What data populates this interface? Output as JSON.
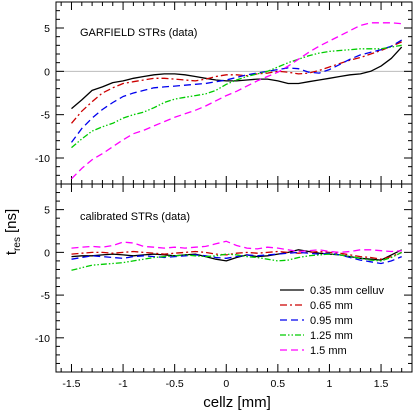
{
  "chart_data": [
    {
      "type": "line",
      "title": "GARFIELD STRs (data)",
      "xlabel": "cellz [mm]",
      "ylabel": "t_res [ns]",
      "xlim": [
        -1.65,
        1.8
      ],
      "ylim": [
        -13,
        8
      ],
      "yticks": [
        -10,
        -5,
        0,
        5
      ],
      "reference_line_y": 0,
      "series": [
        {
          "name": "0.35 mm celluv",
          "color": "#000000",
          "dash": "solid",
          "x": [
            -1.5,
            -1.4,
            -1.3,
            -1.2,
            -1.1,
            -1.0,
            -0.9,
            -0.8,
            -0.7,
            -0.6,
            -0.5,
            -0.4,
            -0.3,
            -0.2,
            -0.1,
            0.0,
            0.1,
            0.2,
            0.3,
            0.4,
            0.5,
            0.6,
            0.7,
            0.8,
            0.9,
            1.0,
            1.1,
            1.2,
            1.3,
            1.4,
            1.5,
            1.6,
            1.7
          ],
          "y": [
            -4.3,
            -3.3,
            -2.2,
            -1.8,
            -1.3,
            -1.1,
            -0.8,
            -0.6,
            -0.4,
            -0.3,
            -0.3,
            -0.4,
            -0.6,
            -0.8,
            -1.0,
            -1.1,
            -1.1,
            -1.0,
            -0.9,
            -0.9,
            -1.1,
            -1.4,
            -1.4,
            -1.2,
            -1.0,
            -0.8,
            -0.6,
            -0.4,
            -0.3,
            0.0,
            0.6,
            1.5,
            2.8
          ]
        },
        {
          "name": "0.65 mm",
          "color": "#cc0000",
          "dash": "dashdot",
          "x": [
            -1.5,
            -1.4,
            -1.3,
            -1.2,
            -1.1,
            -1.0,
            -0.9,
            -0.8,
            -0.7,
            -0.6,
            -0.5,
            -0.4,
            -0.3,
            -0.2,
            -0.1,
            0.0,
            0.1,
            0.2,
            0.3,
            0.4,
            0.5,
            0.6,
            0.7,
            0.8,
            0.9,
            1.0,
            1.1,
            1.2,
            1.3,
            1.4,
            1.5,
            1.6,
            1.7
          ],
          "y": [
            -6.0,
            -4.6,
            -3.5,
            -2.5,
            -1.9,
            -1.4,
            -1.2,
            -1.0,
            -0.8,
            -0.8,
            -0.9,
            -1.0,
            -1.1,
            -0.9,
            -0.6,
            -0.4,
            -0.4,
            -0.5,
            -0.3,
            -0.2,
            0.0,
            -0.1,
            -0.3,
            -0.2,
            0.1,
            0.5,
            0.9,
            1.3,
            1.6,
            2.0,
            2.4,
            2.9,
            3.4
          ]
        },
        {
          "name": "0.95 mm",
          "color": "#0000ee",
          "dash": "dashed",
          "x": [
            -1.5,
            -1.4,
            -1.3,
            -1.2,
            -1.1,
            -1.0,
            -0.9,
            -0.8,
            -0.7,
            -0.6,
            -0.5,
            -0.4,
            -0.3,
            -0.2,
            -0.1,
            0.0,
            0.1,
            0.2,
            0.3,
            0.4,
            0.5,
            0.6,
            0.7,
            0.8,
            0.9,
            1.0,
            1.1,
            1.2,
            1.3,
            1.4,
            1.5,
            1.6,
            1.7
          ],
          "y": [
            -8.2,
            -6.6,
            -5.4,
            -4.4,
            -3.6,
            -2.9,
            -2.5,
            -2.2,
            -1.9,
            -1.8,
            -1.7,
            -1.6,
            -1.5,
            -1.4,
            -1.2,
            -1.0,
            -0.7,
            -0.4,
            -0.2,
            0.0,
            0.2,
            0.4,
            0.3,
            -0.1,
            -0.2,
            0.2,
            0.8,
            1.4,
            1.9,
            2.2,
            2.5,
            2.9,
            3.6
          ]
        },
        {
          "name": "1.25 mm",
          "color": "#00cc00",
          "dash": "dashdotdot",
          "x": [
            -1.5,
            -1.4,
            -1.3,
            -1.2,
            -1.1,
            -1.0,
            -0.9,
            -0.8,
            -0.7,
            -0.6,
            -0.5,
            -0.4,
            -0.3,
            -0.2,
            -0.1,
            0.0,
            0.1,
            0.2,
            0.3,
            0.4,
            0.5,
            0.6,
            0.7,
            0.8,
            0.9,
            1.0,
            1.1,
            1.2,
            1.3,
            1.4,
            1.5,
            1.6,
            1.7
          ],
          "y": [
            -8.8,
            -7.8,
            -6.9,
            -6.4,
            -6.0,
            -5.4,
            -5.0,
            -4.7,
            -4.2,
            -3.6,
            -3.2,
            -3.0,
            -2.8,
            -2.6,
            -2.2,
            -1.5,
            -1.0,
            -0.6,
            -0.3,
            0.0,
            0.5,
            1.0,
            1.4,
            1.8,
            2.1,
            2.3,
            2.4,
            2.5,
            2.6,
            2.6,
            2.6,
            2.8,
            3.0
          ]
        },
        {
          "name": "1.5 mm",
          "color": "#ff00ff",
          "dash": "dashed",
          "x": [
            -1.5,
            -1.4,
            -1.3,
            -1.2,
            -1.1,
            -1.0,
            -0.9,
            -0.8,
            -0.7,
            -0.6,
            -0.5,
            -0.4,
            -0.3,
            -0.2,
            -0.1,
            0.0,
            0.1,
            0.2,
            0.3,
            0.4,
            0.5,
            0.6,
            0.7,
            0.8,
            0.9,
            1.0,
            1.1,
            1.2,
            1.3,
            1.4,
            1.5,
            1.6,
            1.7
          ],
          "y": [
            -12.4,
            -11.2,
            -10.2,
            -9.5,
            -8.7,
            -7.9,
            -7.2,
            -6.8,
            -6.3,
            -5.8,
            -5.3,
            -4.9,
            -4.5,
            -4.0,
            -3.4,
            -2.8,
            -2.3,
            -1.7,
            -1.1,
            -0.6,
            -0.1,
            0.6,
            1.4,
            2.2,
            2.9,
            3.5,
            4.1,
            4.7,
            5.3,
            5.6,
            5.6,
            5.6,
            5.5
          ]
        }
      ]
    },
    {
      "type": "line",
      "title": "calibrated STRs (data)",
      "xlabel": "cellz [mm]",
      "ylabel": "t_res [ns]",
      "xlim": [
        -1.65,
        1.8
      ],
      "ylim": [
        -14,
        8
      ],
      "xticks": [
        -1.5,
        -1,
        -0.5,
        0,
        0.5,
        1,
        1.5
      ],
      "yticks": [
        -10,
        -5,
        0,
        5
      ],
      "series": [
        {
          "name": "0.35 mm celluv",
          "color": "#000000",
          "dash": "solid",
          "x": [
            -1.5,
            -1.4,
            -1.3,
            -1.2,
            -1.1,
            -1.0,
            -0.9,
            -0.8,
            -0.7,
            -0.6,
            -0.5,
            -0.4,
            -0.3,
            -0.2,
            -0.1,
            0.0,
            0.1,
            0.2,
            0.3,
            0.4,
            0.5,
            0.6,
            0.7,
            0.8,
            0.9,
            1.0,
            1.1,
            1.2,
            1.3,
            1.4,
            1.5,
            1.6,
            1.7
          ],
          "y": [
            -0.5,
            -0.4,
            -0.4,
            -0.3,
            -0.2,
            -0.3,
            -0.4,
            -0.3,
            -0.2,
            -0.3,
            -0.4,
            -0.3,
            -0.2,
            -0.5,
            -0.8,
            -1.0,
            -0.6,
            -0.3,
            -0.5,
            -0.4,
            -0.2,
            0.0,
            0.3,
            0.1,
            -0.1,
            -0.2,
            -0.3,
            -0.5,
            -0.7,
            -0.8,
            -0.9,
            -0.3,
            0.3
          ]
        },
        {
          "name": "0.65 mm",
          "color": "#cc0000",
          "dash": "dashdot",
          "x": [
            -1.5,
            -1.4,
            -1.3,
            -1.2,
            -1.1,
            -1.0,
            -0.9,
            -0.8,
            -0.7,
            -0.6,
            -0.5,
            -0.4,
            -0.3,
            -0.2,
            -0.1,
            0.0,
            0.1,
            0.2,
            0.3,
            0.4,
            0.5,
            0.6,
            0.7,
            0.8,
            0.9,
            1.0,
            1.1,
            1.2,
            1.3,
            1.4,
            1.5,
            1.6,
            1.7
          ],
          "y": [
            -0.2,
            -0.1,
            0.0,
            0.0,
            -0.1,
            0.0,
            0.1,
            0.0,
            -0.1,
            -0.2,
            -0.1,
            0.0,
            0.1,
            0.0,
            -0.2,
            -0.3,
            -0.1,
            0.0,
            -0.1,
            0.0,
            0.1,
            0.0,
            -0.1,
            0.0,
            0.1,
            0.0,
            -0.1,
            -0.3,
            -0.5,
            -0.6,
            -0.8,
            -0.5,
            0.0
          ]
        },
        {
          "name": "0.95 mm",
          "color": "#0000ee",
          "dash": "dashed",
          "x": [
            -1.5,
            -1.4,
            -1.3,
            -1.2,
            -1.1,
            -1.0,
            -0.9,
            -0.8,
            -0.7,
            -0.6,
            -0.5,
            -0.4,
            -0.3,
            -0.2,
            -0.1,
            0.0,
            0.1,
            0.2,
            0.3,
            0.4,
            0.5,
            0.6,
            0.7,
            0.8,
            0.9,
            1.0,
            1.1,
            1.2,
            1.3,
            1.4,
            1.5,
            1.6,
            1.7
          ],
          "y": [
            -0.8,
            -0.6,
            -0.4,
            -0.5,
            -0.6,
            -0.7,
            -0.5,
            -0.4,
            -0.5,
            -0.6,
            -0.5,
            -0.4,
            -0.3,
            -0.4,
            -0.6,
            -0.7,
            -0.5,
            -0.3,
            -0.4,
            -0.3,
            -0.2,
            -0.1,
            0.0,
            -0.1,
            -0.2,
            -0.1,
            -0.3,
            -0.6,
            -0.9,
            -1.1,
            -1.3,
            -1.0,
            -0.5
          ]
        },
        {
          "name": "1.25 mm",
          "color": "#00cc00",
          "dash": "dashdotdot",
          "x": [
            -1.5,
            -1.4,
            -1.3,
            -1.2,
            -1.1,
            -1.0,
            -0.9,
            -0.8,
            -0.7,
            -0.6,
            -0.5,
            -0.4,
            -0.3,
            -0.2,
            -0.1,
            0.0,
            0.1,
            0.2,
            0.3,
            0.4,
            0.5,
            0.6,
            0.7,
            0.8,
            0.9,
            1.0,
            1.1,
            1.2,
            1.3,
            1.4,
            1.5,
            1.6,
            1.7
          ],
          "y": [
            -2.1,
            -1.8,
            -1.5,
            -1.4,
            -1.3,
            -1.2,
            -1.0,
            -0.8,
            -0.6,
            -0.5,
            -0.4,
            -0.3,
            -0.4,
            -0.5,
            -0.4,
            -0.2,
            -0.3,
            -0.5,
            -0.6,
            -0.8,
            -1.0,
            -0.9,
            -0.6,
            -0.4,
            -0.3,
            -0.2,
            -0.3,
            -0.5,
            -0.7,
            -0.9,
            -1.0,
            -0.6,
            0.0
          ]
        },
        {
          "name": "1.5 mm",
          "color": "#ff00ff",
          "dash": "dashed",
          "x": [
            -1.5,
            -1.4,
            -1.3,
            -1.2,
            -1.1,
            -1.0,
            -0.9,
            -0.8,
            -0.7,
            -0.6,
            -0.5,
            -0.4,
            -0.3,
            -0.2,
            -0.1,
            0.0,
            0.1,
            0.2,
            0.3,
            0.4,
            0.5,
            0.6,
            0.7,
            0.8,
            0.9,
            1.0,
            1.1,
            1.2,
            1.3,
            1.4,
            1.5,
            1.6,
            1.7
          ],
          "y": [
            0.5,
            0.6,
            0.7,
            0.6,
            0.8,
            1.2,
            1.1,
            0.7,
            0.6,
            0.5,
            0.6,
            0.5,
            0.6,
            0.7,
            1.0,
            1.3,
            0.8,
            0.5,
            0.4,
            0.6,
            0.5,
            0.3,
            0.1,
            0.2,
            0.3,
            0.1,
            0.0,
            0.1,
            0.3,
            0.3,
            0.2,
            0.1,
            0.2
          ]
        }
      ]
    }
  ],
  "legend": {
    "entries": [
      "0.35 mm celluv",
      "0.65 mm",
      "0.95 mm",
      "1.25 mm",
      "1.5 mm"
    ],
    "placement": "bottom-right of lower panel"
  },
  "labels": {
    "xlabel": "cellz [mm]",
    "ylabel_main": "t",
    "ylabel_sub": "res",
    "ylabel_unit": "[ns]"
  }
}
